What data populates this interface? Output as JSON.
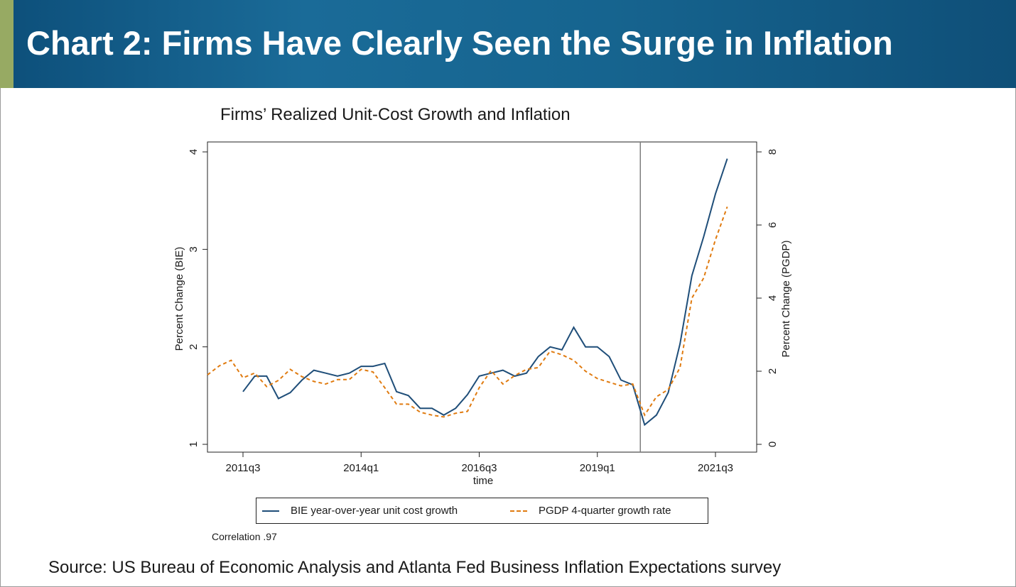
{
  "banner": {
    "title": "Chart 2: Firms Have Clearly Seen the Surge in Inflation"
  },
  "note": "Correlation .97",
  "source": "Source: US Bureau of Economic Analysis and Atlanta Fed Business Inflation Expectations survey",
  "colors": {
    "banner": "#16648f",
    "accent": "#97aa63",
    "bie": "#1f4e79",
    "pgdp": "#e07b10",
    "vline": "#7f7f7f"
  },
  "chart_data": {
    "type": "line",
    "title": "Firms’ Realized Unit-Cost Growth and Inflation",
    "xlabel": "time",
    "ylabel": "Percent Change (BIE)",
    "y2label": "Percent Change (PGDP)",
    "ylim": [
      1,
      4
    ],
    "y2lim": [
      0,
      8
    ],
    "ylim_axis_extent": [
      0.92,
      4.1
    ],
    "x_ticks": [
      "2011q3",
      "2014q1",
      "2016q3",
      "2019q1",
      "2021q3"
    ],
    "y_ticks": [
      "1",
      "2",
      "3",
      "4"
    ],
    "y2_ticks": [
      "0",
      "2",
      "4",
      "6",
      "8"
    ],
    "vertical_line_at": "2020q1",
    "x": [
      "2010q4",
      "2011q1",
      "2011q2",
      "2011q3",
      "2011q4",
      "2012q1",
      "2012q2",
      "2012q3",
      "2012q4",
      "2013q1",
      "2013q2",
      "2013q3",
      "2013q4",
      "2014q1",
      "2014q2",
      "2014q3",
      "2014q4",
      "2015q1",
      "2015q2",
      "2015q3",
      "2015q4",
      "2016q1",
      "2016q2",
      "2016q3",
      "2016q4",
      "2017q1",
      "2017q2",
      "2017q3",
      "2017q4",
      "2018q1",
      "2018q2",
      "2018q3",
      "2018q4",
      "2019q1",
      "2019q2",
      "2019q3",
      "2019q4",
      "2020q1",
      "2020q2",
      "2020q3",
      "2020q4",
      "2021q1",
      "2021q2",
      "2021q3",
      "2021q4",
      "2022q1"
    ],
    "series": [
      {
        "name": "BIE year-over-year unit cost growth",
        "axis": "left",
        "style": "solid",
        "values": [
          null,
          null,
          null,
          1.54,
          1.7,
          1.7,
          1.47,
          1.53,
          1.66,
          1.76,
          1.73,
          1.7,
          1.73,
          1.8,
          1.8,
          1.83,
          1.54,
          1.5,
          1.37,
          1.37,
          1.3,
          1.37,
          1.51,
          1.7,
          1.73,
          1.76,
          1.7,
          1.73,
          1.9,
          2.0,
          1.97,
          2.2,
          2.0,
          2.0,
          1.9,
          1.66,
          1.61,
          1.2,
          1.3,
          1.53,
          2.03,
          2.73,
          3.13,
          3.57,
          3.93,
          null
        ]
      },
      {
        "name": "PGDP 4-quarter growth rate",
        "axis": "right",
        "style": "dashed",
        "values": [
          1.9,
          2.15,
          2.3,
          1.82,
          1.95,
          1.58,
          1.75,
          2.05,
          1.85,
          1.72,
          1.65,
          1.77,
          1.77,
          2.05,
          1.98,
          1.55,
          1.1,
          1.1,
          0.88,
          0.8,
          0.75,
          0.85,
          0.9,
          1.55,
          2.02,
          1.65,
          1.88,
          2.05,
          2.1,
          2.55,
          2.45,
          2.3,
          2.0,
          1.8,
          1.7,
          1.6,
          1.65,
          0.8,
          1.3,
          1.5,
          2.1,
          4.0,
          4.55,
          5.6,
          6.5,
          null
        ]
      }
    ],
    "legend_position": "bottom"
  }
}
